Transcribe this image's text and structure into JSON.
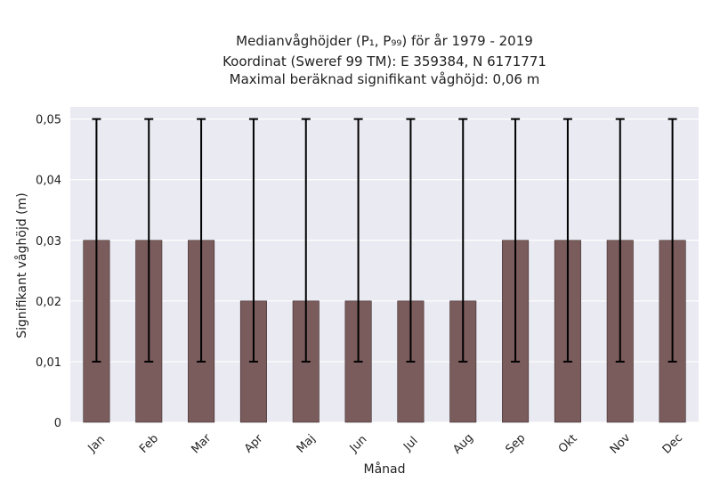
{
  "chart_data": {
    "type": "bar",
    "title_lines": [
      "Medianvåghöjder (P₁, P₉₉) för år 1979 - 2019",
      "Koordinat (Sweref 99 TM): E 359384, N 6171771",
      "Maximal beräknad signifikant våghöjd: 0,06 m"
    ],
    "xlabel": "Månad",
    "ylabel": "Signifikant våghöjd (m)",
    "categories": [
      "Jan",
      "Feb",
      "Mar",
      "Apr",
      "Maj",
      "Jun",
      "Jul",
      "Aug",
      "Sep",
      "Okt",
      "Nov",
      "Dec"
    ],
    "values": [
      0.03,
      0.03,
      0.03,
      0.02,
      0.02,
      0.02,
      0.02,
      0.02,
      0.03,
      0.03,
      0.03,
      0.03
    ],
    "error_low": [
      0.01,
      0.01,
      0.01,
      0.01,
      0.01,
      0.01,
      0.01,
      0.01,
      0.01,
      0.01,
      0.01,
      0.01
    ],
    "error_high": [
      0.05,
      0.05,
      0.05,
      0.05,
      0.05,
      0.05,
      0.05,
      0.05,
      0.05,
      0.05,
      0.05,
      0.05
    ],
    "ylim": [
      0,
      0.052
    ],
    "yticks": [
      0,
      0.01,
      0.02,
      0.03,
      0.04,
      0.05
    ],
    "ytick_labels": [
      "0",
      "0,01",
      "0,02",
      "0,03",
      "0,04",
      "0,05"
    ],
    "grid": true,
    "bar_color": "#7b5c5c",
    "background_color": "#eaeaf2"
  }
}
